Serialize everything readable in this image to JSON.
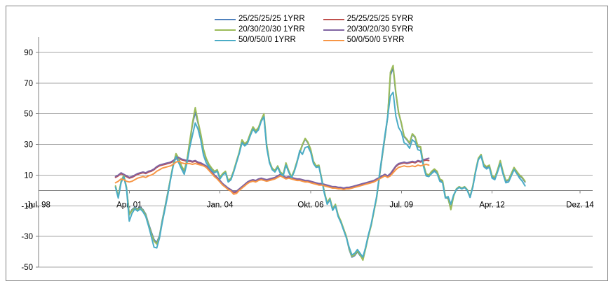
{
  "chart_data": {
    "type": "line",
    "title": "",
    "xlabel": "",
    "ylabel": "",
    "x_unit": "months since Jul 1998",
    "xlim": [
      0,
      201.6
    ],
    "ylim": [
      -50,
      100
    ],
    "grid": "horizontal, every 20 from -50 to 90",
    "legend_position": "top-center, two columns",
    "axis_color": "#808080",
    "gridline_color": "#a6a6a6",
    "y_ticks": [
      {
        "label": "90",
        "value": 90
      },
      {
        "label": "70",
        "value": 70
      },
      {
        "label": "50",
        "value": 50
      },
      {
        "label": "30",
        "value": 30
      },
      {
        "label": "10",
        "value": 10
      },
      {
        "label": "-10",
        "value": -10
      },
      {
        "label": "-30",
        "value": -30
      },
      {
        "label": "-50",
        "value": -50
      }
    ],
    "x_ticks": [
      {
        "label": "Jul. 98",
        "value": 0
      },
      {
        "label": "Apr. 01",
        "value": 33
      },
      {
        "label": "Jan. 04",
        "value": 66
      },
      {
        "label": "Okt. 06",
        "value": 99
      },
      {
        "label": "Jul. 09",
        "value": 132
      },
      {
        "label": "Apr. 12",
        "value": 165
      },
      {
        "label": "Dez. 14",
        "value": 197
      }
    ],
    "series": [
      {
        "label": "25/25/25/25 1YRR",
        "color": "#4F81BD",
        "start_month": 28,
        "values": [
          2.5,
          -4,
          5.5,
          9.5,
          1.5,
          -15.5,
          -12.5,
          -11,
          -12,
          -11,
          -12.5,
          -15.5,
          -21.5,
          -27,
          -32,
          -34,
          -29.5,
          -19.5,
          -10.5,
          -1.5,
          7.5,
          16.5,
          23,
          20.5,
          15.5,
          12.5,
          19.5,
          31,
          43,
          51,
          44,
          36.5,
          26.5,
          20.5,
          16.5,
          14,
          12,
          13,
          8,
          10.5,
          12,
          6,
          7.5,
          12.5,
          18.5,
          24.5,
          32.5,
          30,
          31.5,
          36.5,
          41,
          38.5,
          40.5,
          45.5,
          48,
          29.5,
          18.5,
          14,
          12.5,
          15.5,
          11.5,
          10,
          17.5,
          12.5,
          8.5,
          12.5,
          18.5,
          24.5,
          29.5,
          33.5,
          31,
          26.5,
          18.5,
          15.5,
          16,
          7.5,
          -1.5,
          -8.5,
          -5.5,
          -12.5,
          -9.5,
          -16.5,
          -20.5,
          -25.5,
          -30.5,
          -38.5,
          -43.5,
          -42.5,
          -40,
          -42.5,
          -44.5,
          -37.5,
          -29.5,
          -22.5,
          -13.5,
          -4.5,
          8.5,
          21.5,
          34.5,
          47.5,
          75,
          80,
          63,
          50.5,
          43.5,
          35,
          33,
          30.5,
          36.5,
          34.5,
          28.5,
          28,
          17,
          10.5,
          9.5,
          12,
          13.5,
          12,
          7,
          6,
          -4.5,
          -5.5,
          -12,
          -3.5,
          0.5,
          2,
          1,
          2,
          0,
          -4.5,
          2.5,
          12.5,
          20.5,
          23,
          16.5,
          15,
          16,
          9,
          8,
          13,
          19,
          11.5,
          6,
          6.5,
          10.5,
          14.5,
          12,
          9.5,
          8,
          5.5
        ]
      },
      {
        "label": "25/25/25/25 5YRR",
        "color": "#C0504D",
        "start_month": 28,
        "values": [
          8.5,
          9.5,
          11,
          10,
          9,
          8,
          8.5,
          9.5,
          10.5,
          11,
          11.5,
          11,
          12,
          12.5,
          13.5,
          15,
          16,
          16.5,
          17,
          17.5,
          18,
          19,
          20.5,
          21,
          20,
          19.5,
          19,
          19,
          18.5,
          19,
          18,
          17.5,
          16.5,
          15.5,
          13.5,
          11.5,
          9.5,
          8,
          6,
          4,
          2.5,
          1,
          0,
          -1.5,
          -1,
          0.5,
          2,
          3.5,
          5,
          6,
          6.5,
          6,
          7,
          7.5,
          7,
          6.5,
          7,
          7.5,
          8,
          9,
          10,
          9,
          8,
          8.5,
          8,
          7.5,
          7,
          7,
          6.5,
          6,
          6,
          5.5,
          5,
          4.5,
          4,
          4,
          3.5,
          3,
          2.5,
          2,
          2,
          1.5,
          1.5,
          1,
          1.5,
          1.5,
          2,
          2.5,
          3,
          3.5,
          4,
          4.5,
          5,
          5.5,
          6,
          7,
          8,
          9,
          10,
          9,
          10.5,
          13,
          15.5,
          17,
          17.5,
          18,
          17.5,
          18,
          18.5,
          18,
          19,
          18.5,
          19.3,
          19.8,
          19.5
        ]
      },
      {
        "label": "20/30/20/30 1YRR",
        "color": "#9BBB59",
        "start_month": 28,
        "values": [
          3,
          -4,
          6,
          10,
          2,
          -16,
          -13,
          -11.5,
          -12.5,
          -11.5,
          -13,
          -16,
          -22,
          -28,
          -33,
          -35,
          -30,
          -20,
          -11,
          -2,
          8,
          17,
          24,
          21,
          16,
          13,
          20,
          32,
          44,
          54,
          45,
          37,
          27,
          21,
          17,
          14.5,
          12.5,
          13.5,
          8.5,
          11,
          12.5,
          6.5,
          8,
          13,
          19,
          25,
          33,
          30.5,
          32,
          37,
          41.5,
          39,
          41,
          46,
          50,
          30,
          19,
          14.5,
          13,
          16,
          12,
          10.5,
          18,
          13,
          9,
          13,
          19,
          25,
          30,
          34,
          31.5,
          27,
          19,
          16,
          16.5,
          8,
          -1,
          -8,
          -5,
          -12,
          -9,
          -16,
          -20,
          -25,
          -30,
          -38,
          -43,
          -42,
          -39.5,
          -42,
          -45.5,
          -38,
          -30,
          -23,
          -14,
          -5,
          9,
          22,
          35,
          48,
          77,
          81.5,
          64,
          51,
          44,
          35.5,
          33.5,
          31,
          37,
          35,
          29,
          28.5,
          17.5,
          11,
          10,
          12.5,
          14,
          12.5,
          7.5,
          6.5,
          -4,
          -5,
          -12.5,
          -4,
          1,
          2.5,
          1.5,
          2.5,
          0.5,
          -4,
          3,
          13,
          21,
          23.5,
          17,
          15.5,
          16.5,
          9.5,
          8.5,
          13.5,
          19.5,
          12,
          6.5,
          7,
          11,
          15,
          12.5,
          10,
          8.5,
          6
        ]
      },
      {
        "label": "20/30/20/30 5YRR",
        "color": "#8064A2",
        "start_month": 28,
        "values": [
          9,
          10,
          11.5,
          10.5,
          9.5,
          8.5,
          9,
          10,
          11,
          11.5,
          12,
          11.5,
          12.5,
          13,
          14,
          15.5,
          16.5,
          17,
          17.5,
          18,
          18.5,
          19.5,
          21,
          21.5,
          20.5,
          20,
          19.5,
          19.5,
          19,
          19.5,
          18.5,
          18,
          17,
          16,
          14,
          12,
          10,
          8.5,
          6.5,
          4.5,
          3,
          1.5,
          0.5,
          -1,
          -0.5,
          1,
          2.5,
          4,
          5.5,
          6.5,
          7,
          6.5,
          7.5,
          8,
          7.5,
          7,
          7.5,
          8,
          8.5,
          9.5,
          10.5,
          9.5,
          8.5,
          9,
          8.5,
          8,
          7.5,
          7.5,
          7,
          6.5,
          6.5,
          6,
          5.5,
          5,
          4.5,
          4.5,
          4,
          3.5,
          3,
          2.5,
          2.5,
          2,
          2,
          1.5,
          2,
          2,
          2.5,
          3,
          3.5,
          4,
          4.5,
          5,
          5.5,
          6,
          6.5,
          7.5,
          8.5,
          9.5,
          10.5,
          9.5,
          11,
          13.5,
          16,
          17.5,
          18,
          18.5,
          18,
          18.5,
          19,
          18.5,
          19.5,
          19,
          20,
          20.5,
          21
        ]
      },
      {
        "label": "50/0/50/0 1YRR",
        "color": "#4BACC6",
        "start_month": 28,
        "values": [
          2,
          -5,
          5,
          9,
          1,
          -20,
          -15,
          -12,
          -13.5,
          -12,
          -14,
          -17,
          -23,
          -30,
          -37,
          -37.5,
          -31,
          -21,
          -12,
          -3,
          7,
          16,
          22,
          18,
          14,
          10.5,
          18,
          28,
          36,
          44,
          40,
          33,
          23,
          18,
          15,
          13,
          11.5,
          12.5,
          7.5,
          10,
          11.5,
          5.5,
          7,
          12,
          18,
          24,
          31,
          29,
          30.5,
          35.5,
          40,
          37.5,
          39.5,
          45,
          48,
          28,
          18,
          13.5,
          12,
          15,
          11,
          9.5,
          16.5,
          12,
          8,
          12,
          18,
          26,
          23.5,
          28,
          28.5,
          25,
          17.5,
          15,
          15.5,
          7,
          -2,
          -9,
          -6,
          -13,
          -10,
          -17,
          -21,
          -26,
          -31,
          -37,
          -42,
          -41,
          -38.5,
          -41,
          -43.5,
          -37,
          -29,
          -22,
          -13,
          -4,
          10,
          23,
          36,
          48,
          61.5,
          64,
          48.5,
          41,
          38,
          31,
          30,
          27.5,
          33,
          31.5,
          26.5,
          26,
          16,
          9.5,
          9,
          11,
          12.5,
          11,
          6,
          5,
          -5,
          -4,
          -9,
          -3,
          0.5,
          2,
          1,
          2,
          0,
          -4.5,
          2,
          12,
          20,
          22.5,
          15.5,
          14,
          15,
          8,
          7,
          12,
          17.5,
          10.5,
          5,
          5.5,
          9.5,
          13.5,
          11,
          8,
          6,
          3
        ]
      },
      {
        "label": "50/0/50/0 5YRR",
        "color": "#F79646",
        "start_month": 28,
        "values": [
          5,
          6,
          7.5,
          7,
          6,
          5.5,
          6,
          7,
          8,
          8.5,
          9,
          8.5,
          9.5,
          10,
          11,
          12.5,
          13.5,
          14.5,
          15,
          15.5,
          16,
          17,
          18.5,
          19,
          18,
          17.5,
          17.5,
          17.5,
          17,
          17.5,
          17,
          16.5,
          16,
          15,
          13,
          11,
          9,
          7.5,
          5.5,
          3.5,
          2,
          0.5,
          -0.5,
          -2.5,
          -2,
          0,
          1.5,
          3,
          4.5,
          5.5,
          6,
          5.5,
          6.5,
          7,
          6.5,
          6,
          6.5,
          7,
          7.5,
          8.5,
          9.5,
          8.5,
          7.5,
          8,
          7.5,
          7,
          6.5,
          6.5,
          6,
          5.5,
          5.5,
          5,
          4.5,
          4,
          3.5,
          3.5,
          3,
          2.5,
          2,
          1.5,
          1.5,
          1,
          1,
          0.5,
          1,
          1,
          1.5,
          2,
          2.5,
          3,
          3.5,
          4,
          4.5,
          5,
          5.5,
          6.5,
          7.5,
          8.5,
          9.5,
          8.5,
          9.5,
          11.5,
          13.5,
          15,
          15.5,
          16,
          15.5,
          15.5,
          16,
          15.5,
          16.5,
          16,
          16.5,
          17,
          16.5
        ]
      }
    ]
  }
}
